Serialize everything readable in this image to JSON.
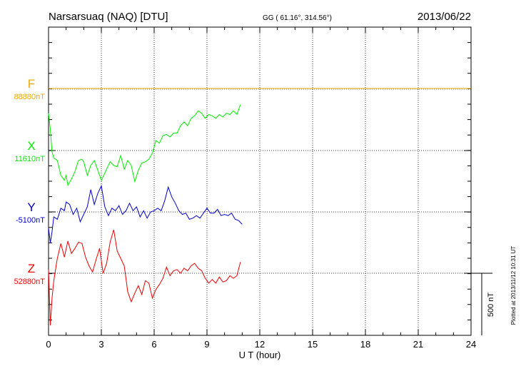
{
  "header": {
    "station": "Narsarsuaq (NAQ)  [DTU]",
    "coords": "GG ( 61.16°, 314.56°)",
    "date": "2013/06/22"
  },
  "footer": {
    "plotted": "Plotted at 2013/11/12 10:31  UT"
  },
  "scale_bar": {
    "label": "500 nT",
    "value_nT": 500
  },
  "colors": {
    "F": "#f0a800",
    "X": "#00ee00",
    "Y": "#0000cc",
    "Z": "#ee0000"
  },
  "chart_data": {
    "type": "line",
    "xlabel": "U T (hour)",
    "xlim": [
      0,
      24
    ],
    "xticks": [
      0,
      3,
      6,
      9,
      12,
      15,
      18,
      21,
      24
    ],
    "grid": true,
    "series": [
      {
        "name": "F",
        "baseline_label": "88880nT",
        "baseline_nT": 88880,
        "x": [
          0,
          24
        ],
        "values": [
          0,
          0
        ]
      },
      {
        "name": "X",
        "baseline_label": "11610nT",
        "baseline_nT": 11610,
        "x": [
          0,
          0.1,
          0.2,
          0.3,
          0.5,
          0.7,
          0.9,
          1.0,
          1.1,
          1.3,
          1.5,
          1.7,
          1.9,
          2.0,
          2.2,
          2.4,
          2.6,
          2.8,
          3.0,
          3.1,
          3.3,
          3.5,
          3.7,
          3.9,
          4.1,
          4.3,
          4.5,
          4.7,
          4.9,
          5.1,
          5.3,
          5.5,
          5.7,
          5.9,
          6.1,
          6.3,
          6.5,
          6.7,
          6.9,
          7.1,
          7.3,
          7.5,
          7.7,
          7.9,
          8.1,
          8.3,
          8.5,
          8.7,
          8.9,
          9.1,
          9.3,
          9.5,
          9.7,
          9.9,
          10.1,
          10.3,
          10.5,
          10.7,
          10.9
        ],
        "values": [
          300,
          170,
          -10,
          -60,
          -80,
          -200,
          -240,
          -200,
          -280,
          -230,
          -170,
          -80,
          -70,
          -90,
          -200,
          -120,
          -80,
          -160,
          -240,
          -210,
          -150,
          -90,
          -120,
          -130,
          -40,
          -150,
          -80,
          -120,
          -250,
          -160,
          -100,
          -90,
          -70,
          -20,
          80,
          60,
          120,
          130,
          110,
          140,
          140,
          200,
          230,
          200,
          260,
          280,
          320,
          300,
          260,
          290,
          280,
          260,
          290,
          270,
          300,
          290,
          320,
          290,
          370
        ]
      },
      {
        "name": "Y",
        "baseline_label": "-5100nT",
        "baseline_nT": -5100,
        "x": [
          0,
          0.1,
          0.2,
          0.3,
          0.5,
          0.7,
          0.9,
          1.0,
          1.2,
          1.4,
          1.6,
          1.8,
          2.0,
          2.2,
          2.4,
          2.6,
          2.8,
          3.0,
          3.2,
          3.4,
          3.6,
          3.8,
          4.0,
          4.2,
          4.4,
          4.6,
          4.8,
          5.0,
          5.2,
          5.4,
          5.6,
          5.8,
          6.0,
          6.2,
          6.4,
          6.6,
          6.8,
          7.0,
          7.2,
          7.4,
          7.6,
          7.8,
          8.0,
          8.2,
          8.4,
          8.6,
          8.8,
          9.0,
          9.2,
          9.4,
          9.6,
          9.8,
          10.0,
          10.2,
          10.4,
          10.6,
          10.8,
          11.0
        ],
        "values": [
          -130,
          -250,
          -160,
          -40,
          -60,
          30,
          10,
          80,
          60,
          -20,
          30,
          -80,
          -20,
          40,
          180,
          60,
          150,
          210,
          40,
          -30,
          30,
          10,
          50,
          -20,
          10,
          70,
          10,
          40,
          -40,
          10,
          -50,
          0,
          10,
          30,
          10,
          90,
          200,
          120,
          70,
          10,
          -20,
          -10,
          -60,
          -50,
          -30,
          -50,
          -10,
          30,
          -10,
          -10,
          20,
          -30,
          -20,
          -30,
          -10,
          -60,
          -70,
          -100
        ]
      },
      {
        "name": "Z",
        "baseline_label": "52880nT",
        "baseline_nT": 52880,
        "x": [
          0,
          0.1,
          0.2,
          0.3,
          0.5,
          0.7,
          0.9,
          1.1,
          1.3,
          1.5,
          1.7,
          1.9,
          2.1,
          2.3,
          2.5,
          2.7,
          2.9,
          3.1,
          3.3,
          3.5,
          3.7,
          3.9,
          4.1,
          4.3,
          4.5,
          4.7,
          4.9,
          5.1,
          5.3,
          5.5,
          5.7,
          5.9,
          6.1,
          6.3,
          6.5,
          6.7,
          6.9,
          7.1,
          7.3,
          7.5,
          7.7,
          7.9,
          8.1,
          8.3,
          8.5,
          8.7,
          8.9,
          9.1,
          9.3,
          9.5,
          9.7,
          9.9,
          10.1,
          10.3,
          10.5,
          10.7,
          10.9
        ],
        "values": [
          30,
          -420,
          -200,
          -60,
          120,
          240,
          130,
          260,
          160,
          200,
          250,
          240,
          130,
          60,
          10,
          110,
          200,
          0,
          80,
          250,
          350,
          180,
          120,
          60,
          -150,
          -230,
          -160,
          -100,
          -170,
          -60,
          -80,
          -200,
          -130,
          -90,
          -40,
          50,
          -20,
          20,
          30,
          0,
          40,
          20,
          60,
          80,
          40,
          20,
          -40,
          -80,
          -50,
          -80,
          -30,
          -70,
          -60,
          -20,
          -40,
          -20,
          90
        ]
      }
    ]
  }
}
